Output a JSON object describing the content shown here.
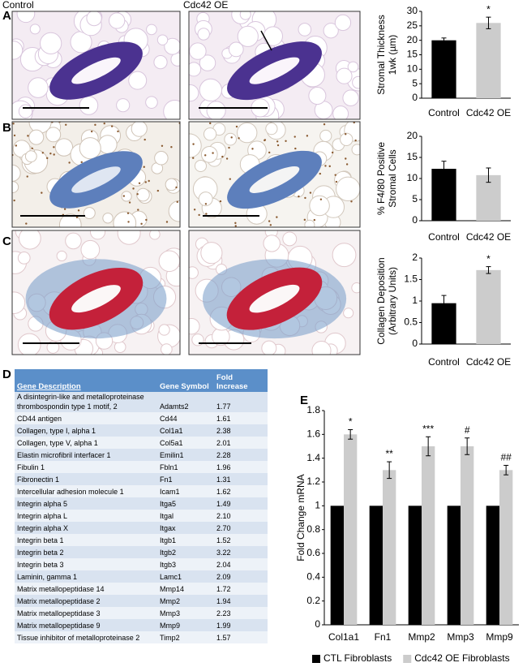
{
  "figure": {
    "panels": [
      "A",
      "B",
      "C",
      "D",
      "E"
    ],
    "image_labels": [
      "Control",
      "Cdc42 OE"
    ]
  },
  "chart_data": [
    {
      "type": "bar",
      "ylabel": [
        "Stromal Thickness",
        "1wk (µm)"
      ],
      "categories": [
        "Control",
        "Cdc42 OE"
      ],
      "values": [
        20,
        26
      ],
      "errors": [
        0.8,
        2
      ],
      "colors": [
        "#000000",
        "#cccccc"
      ],
      "annotations": [
        null,
        "*"
      ],
      "ylim": [
        0,
        30
      ],
      "yticks": [
        0,
        5,
        10,
        15,
        20,
        25,
        30
      ],
      "grid": false
    },
    {
      "type": "bar",
      "ylabel": [
        "% F4/80 Positive",
        "Stromal Cells"
      ],
      "categories": [
        "Control",
        "Cdc42 OE"
      ],
      "values": [
        12.3,
        10.8
      ],
      "errors": [
        1.8,
        1.7
      ],
      "colors": [
        "#000000",
        "#cccccc"
      ],
      "annotations": [
        null,
        null
      ],
      "ylim": [
        0,
        20
      ],
      "yticks": [
        0,
        5,
        10,
        15,
        20
      ],
      "grid": false
    },
    {
      "type": "bar",
      "ylabel": [
        "Collagen Deposition",
        "(Arbitrary Units)"
      ],
      "categories": [
        "Control",
        "Cdc42 OE"
      ],
      "values": [
        0.95,
        1.72
      ],
      "errors": [
        0.18,
        0.08
      ],
      "colors": [
        "#000000",
        "#cccccc"
      ],
      "annotations": [
        null,
        "*"
      ],
      "ylim": [
        0,
        2
      ],
      "yticks": [
        0,
        0.5,
        1,
        1.5,
        2
      ],
      "grid": false
    },
    {
      "type": "bar",
      "ylabel": [
        "Fold Change mRNA"
      ],
      "categories": [
        "Col1a1",
        "Fn1",
        "Mmp2",
        "Mmp3",
        "Mmp9"
      ],
      "series": [
        {
          "name": "CTL Fibroblasts",
          "color": "#000000",
          "values": [
            1,
            1,
            1,
            1,
            1
          ]
        },
        {
          "name": "Cdc42 OE Fibroblasts",
          "color": "#cccccc",
          "values": [
            1.6,
            1.3,
            1.5,
            1.5,
            1.3
          ],
          "errors": [
            0.04,
            0.07,
            0.08,
            0.07,
            0.04
          ]
        }
      ],
      "annotations": [
        "*",
        "**",
        "***",
        "#",
        "##"
      ],
      "ylim": [
        0,
        1.8
      ],
      "yticks": [
        0,
        0.2,
        0.4,
        0.6,
        0.8,
        1,
        1.2,
        1.4,
        1.6,
        1.8
      ],
      "grid": false,
      "legend": "bottom"
    }
  ],
  "table": {
    "header": [
      "Gene Description",
      "Gene Symbol",
      "Fold Increase"
    ],
    "rows": [
      [
        "A disintegrin-like and metalloproteinase thrombospondin type 1 motif, 2",
        "Adamts2",
        "1.77"
      ],
      [
        "CD44 antigen",
        "Cd44",
        "1.61"
      ],
      [
        "Collagen, type I, alpha 1",
        "Col1a1",
        "2.38"
      ],
      [
        "Collagen, type V, alpha 1",
        "Col5a1",
        "2.01"
      ],
      [
        "Elastin microfibril interfacer 1",
        "Emilin1",
        "2.28"
      ],
      [
        "Fibulin 1",
        "Fbln1",
        "1.96"
      ],
      [
        "Fibronectin 1",
        "Fn1",
        "1.31"
      ],
      [
        "Intercellular adhesion molecule 1",
        "Icam1",
        "1.62"
      ],
      [
        "Integrin alpha 5",
        "Itga5",
        "1.49"
      ],
      [
        "Integrin alpha L",
        "Itgal",
        "2.10"
      ],
      [
        "Integrin alpha X",
        "Itgax",
        "2.70"
      ],
      [
        "Integrin beta 1",
        "Itgb1",
        "1.52"
      ],
      [
        "Integrin beta 2",
        "Itgb2",
        "3.22"
      ],
      [
        "Integrin beta 3",
        "Itgb3",
        "2.04"
      ],
      [
        "Laminin, gamma 1",
        "Lamc1",
        "2.09"
      ],
      [
        "Matrix metallopeptidase 14",
        "Mmp14",
        "1.72"
      ],
      [
        "Matrix metallopeptidase 2",
        "Mmp2",
        "1.94"
      ],
      [
        "Matrix metallopeptidase 3",
        "Mmp3",
        "2.23"
      ],
      [
        "Matrix metallopeptidase 9",
        "Mmp9",
        "1.99"
      ],
      [
        "Tissue inhibitor of metalloproteinase 2",
        "Timp2",
        "1.57"
      ]
    ]
  }
}
